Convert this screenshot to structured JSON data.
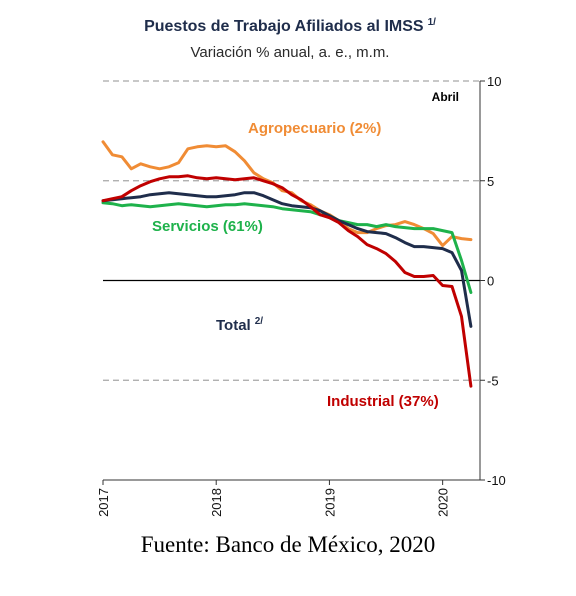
{
  "chart_data": {
    "type": "line",
    "title": "Puestos de Trabajo Afiliados al IMSS",
    "title_note": "1/",
    "subtitle": "Variación % anual, a. e., m.m.",
    "corner_label": "Abril",
    "y_axis": {
      "position": "right",
      "min": -10,
      "max": 10,
      "ticks": [
        10,
        5,
        0,
        -5,
        -10
      ],
      "tick_labels": [
        "10",
        "5",
        "0",
        "-5",
        "-10"
      ]
    },
    "x_axis": {
      "start": 2017.0,
      "end": 2020.33,
      "ticks": [
        2017,
        2018,
        2019,
        2020
      ],
      "tick_labels": [
        "2017",
        "2018",
        "2019",
        "2020"
      ]
    },
    "gridlines": [
      10,
      5,
      -5
    ],
    "zero_line": true,
    "x": [
      2017.0,
      2017.083,
      2017.167,
      2017.25,
      2017.333,
      2017.417,
      2017.5,
      2017.583,
      2017.667,
      2017.75,
      2017.833,
      2017.917,
      2018.0,
      2018.083,
      2018.167,
      2018.25,
      2018.333,
      2018.417,
      2018.5,
      2018.583,
      2018.667,
      2018.75,
      2018.833,
      2018.917,
      2019.0,
      2019.083,
      2019.167,
      2019.25,
      2019.333,
      2019.417,
      2019.5,
      2019.583,
      2019.667,
      2019.75,
      2019.833,
      2019.917,
      2020.0,
      2020.083,
      2020.167,
      2020.25
    ],
    "series": [
      {
        "name": "Agropecuario (2%)",
        "color": "#f08c35",
        "values": [
          6.95,
          6.3,
          6.2,
          5.6,
          5.85,
          5.7,
          5.6,
          5.7,
          5.9,
          6.6,
          6.7,
          6.75,
          6.7,
          6.75,
          6.45,
          6.0,
          5.4,
          5.1,
          4.9,
          4.5,
          4.4,
          4.0,
          3.8,
          3.5,
          3.3,
          3.0,
          2.6,
          2.4,
          2.4,
          2.6,
          2.75,
          2.8,
          2.95,
          2.8,
          2.6,
          2.35,
          1.75,
          2.2,
          2.1,
          2.05
        ]
      },
      {
        "name": "Servicios (61%)",
        "color": "#1eb24b",
        "values": [
          3.9,
          3.85,
          3.75,
          3.8,
          3.75,
          3.7,
          3.75,
          3.8,
          3.85,
          3.8,
          3.75,
          3.7,
          3.75,
          3.8,
          3.8,
          3.85,
          3.8,
          3.75,
          3.7,
          3.6,
          3.55,
          3.5,
          3.45,
          3.3,
          3.25,
          3.0,
          2.9,
          2.8,
          2.8,
          2.7,
          2.8,
          2.7,
          2.65,
          2.6,
          2.6,
          2.6,
          2.5,
          2.4,
          1.0,
          -0.6
        ]
      },
      {
        "name": "Total",
        "name_note": "2/",
        "color": "#1f2d4b",
        "values": [
          4.0,
          4.05,
          4.1,
          4.15,
          4.2,
          4.3,
          4.35,
          4.4,
          4.35,
          4.3,
          4.25,
          4.2,
          4.2,
          4.25,
          4.3,
          4.4,
          4.4,
          4.25,
          4.05,
          3.85,
          3.75,
          3.7,
          3.65,
          3.5,
          3.25,
          3.0,
          2.8,
          2.6,
          2.45,
          2.4,
          2.35,
          2.15,
          1.9,
          1.7,
          1.7,
          1.65,
          1.6,
          1.4,
          0.5,
          -2.3
        ]
      },
      {
        "name": "Industrial (37%)",
        "color": "#c00000",
        "values": [
          4.0,
          4.1,
          4.2,
          4.5,
          4.75,
          4.95,
          5.1,
          5.2,
          5.2,
          5.25,
          5.15,
          5.1,
          5.15,
          5.1,
          5.05,
          5.1,
          5.15,
          5.0,
          4.85,
          4.65,
          4.3,
          4.05,
          3.7,
          3.3,
          3.15,
          2.9,
          2.5,
          2.2,
          1.8,
          1.6,
          1.35,
          0.95,
          0.4,
          0.2,
          0.2,
          0.25,
          -0.25,
          -0.3,
          -1.8,
          -5.3
        ]
      }
    ],
    "annotations": [
      {
        "text": "Agropecuario (2%)",
        "series": 0
      },
      {
        "text": "Servicios (61%)",
        "series": 1
      },
      {
        "text": "Total",
        "note": "2/",
        "series": 2
      },
      {
        "text": "Industrial (37%)",
        "series": 3
      }
    ]
  },
  "source": "Fuente: Banco de México, 2020"
}
